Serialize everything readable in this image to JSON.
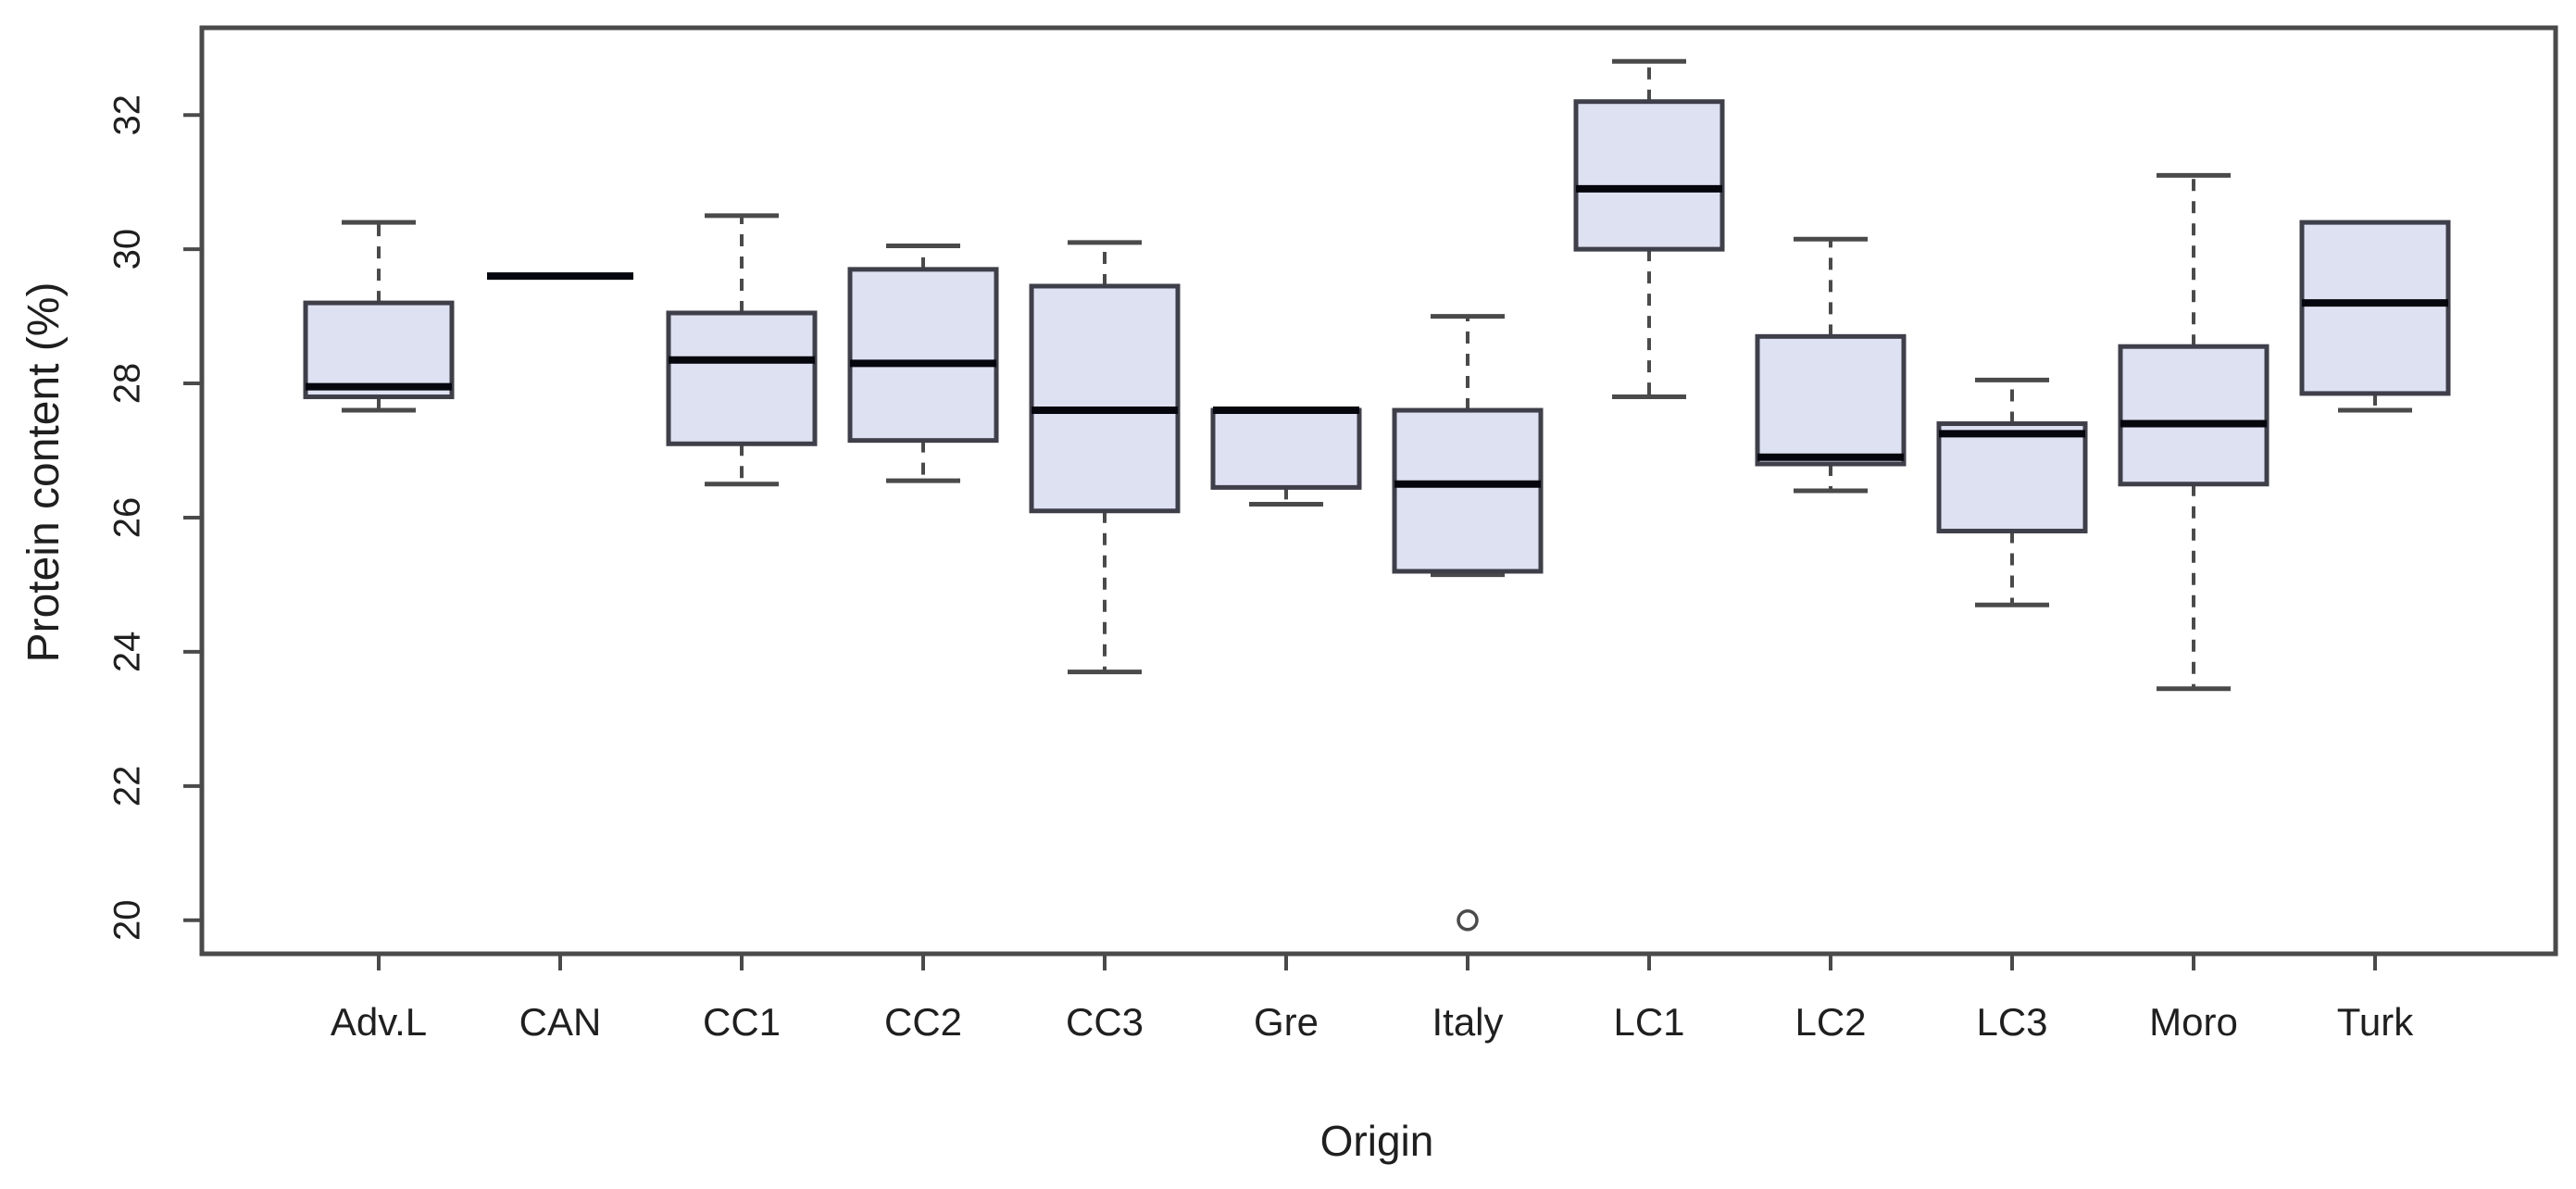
{
  "figure": {
    "xlabel": "Origin",
    "ylabel": "Protein content (%)"
  },
  "chart_data": {
    "type": "boxplot",
    "title": "",
    "xlabel": "Origin",
    "ylabel": "Protein content (%)",
    "ylim": [
      19.5,
      33.3
    ],
    "yticks": [
      20,
      22,
      24,
      26,
      28,
      30,
      32
    ],
    "grid": false,
    "legend": "none",
    "categories": [
      "Adv.L",
      "CAN",
      "CC1",
      "CC2",
      "CC3",
      "Gre",
      "Italy",
      "LC1",
      "LC2",
      "LC3",
      "Moro",
      "Turk"
    ],
    "series": [
      {
        "name": "Adv.L",
        "whisker_low": 27.6,
        "q1": 27.8,
        "median": 27.95,
        "q3": 29.2,
        "whisker_high": 30.4,
        "outliers": []
      },
      {
        "name": "CAN",
        "whisker_low": 29.6,
        "q1": 29.6,
        "median": 29.6,
        "q3": 29.6,
        "whisker_high": 29.6,
        "outliers": []
      },
      {
        "name": "CC1",
        "whisker_low": 26.5,
        "q1": 27.1,
        "median": 28.35,
        "q3": 29.05,
        "whisker_high": 30.5,
        "outliers": []
      },
      {
        "name": "CC2",
        "whisker_low": 26.55,
        "q1": 27.15,
        "median": 28.3,
        "q3": 29.7,
        "whisker_high": 30.05,
        "outliers": []
      },
      {
        "name": "CC3",
        "whisker_low": 23.7,
        "q1": 26.1,
        "median": 27.6,
        "q3": 29.45,
        "whisker_high": 30.1,
        "outliers": []
      },
      {
        "name": "Gre",
        "whisker_low": 26.2,
        "q1": 26.45,
        "median": 27.6,
        "q3": 27.6,
        "whisker_high": 27.6,
        "outliers": []
      },
      {
        "name": "Italy",
        "whisker_low": 25.15,
        "q1": 25.2,
        "median": 26.5,
        "q3": 27.6,
        "whisker_high": 29.0,
        "outliers": [
          20.0
        ]
      },
      {
        "name": "LC1",
        "whisker_low": 27.8,
        "q1": 30.0,
        "median": 30.9,
        "q3": 32.2,
        "whisker_high": 32.8,
        "outliers": []
      },
      {
        "name": "LC2",
        "whisker_low": 26.4,
        "q1": 26.8,
        "median": 26.9,
        "q3": 28.7,
        "whisker_high": 30.15,
        "outliers": []
      },
      {
        "name": "LC3",
        "whisker_low": 24.7,
        "q1": 25.8,
        "median": 27.25,
        "q3": 27.4,
        "whisker_high": 28.05,
        "outliers": []
      },
      {
        "name": "Moro",
        "whisker_low": 23.45,
        "q1": 26.5,
        "median": 27.4,
        "q3": 28.55,
        "whisker_high": 31.1,
        "outliers": []
      },
      {
        "name": "Turk",
        "whisker_low": 27.6,
        "q1": 27.85,
        "median": 29.2,
        "q3": 30.4,
        "whisker_high": 30.4,
        "outliers": []
      }
    ],
    "colors": {
      "background": "#ffffff",
      "box_fill": "#dee1f2",
      "box_border": "#3f3f4a",
      "median": "#06060e",
      "whisker": "#4a4a4a",
      "axis": "#4a4a4a",
      "text": "#1f1f1f"
    }
  }
}
